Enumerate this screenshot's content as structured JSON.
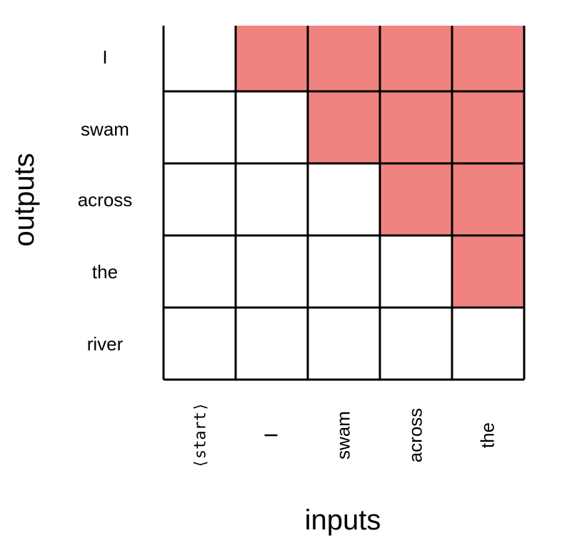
{
  "diagram": {
    "type": "attention-mask",
    "x_axis_title": "inputs",
    "y_axis_title": "outputs",
    "inputs": [
      "⟨start⟩",
      "I",
      "swam",
      "across",
      "the"
    ],
    "outputs": [
      "I",
      "swam",
      "across",
      "the",
      "river"
    ],
    "masked": [
      [
        0,
        1,
        1,
        1,
        1
      ],
      [
        0,
        0,
        1,
        1,
        1
      ],
      [
        0,
        0,
        0,
        1,
        1
      ],
      [
        0,
        0,
        0,
        0,
        1
      ],
      [
        0,
        0,
        0,
        0,
        0
      ]
    ],
    "colors": {
      "masked": "#F08380",
      "unmasked": "#FFFFFF",
      "grid": "#000000"
    }
  }
}
